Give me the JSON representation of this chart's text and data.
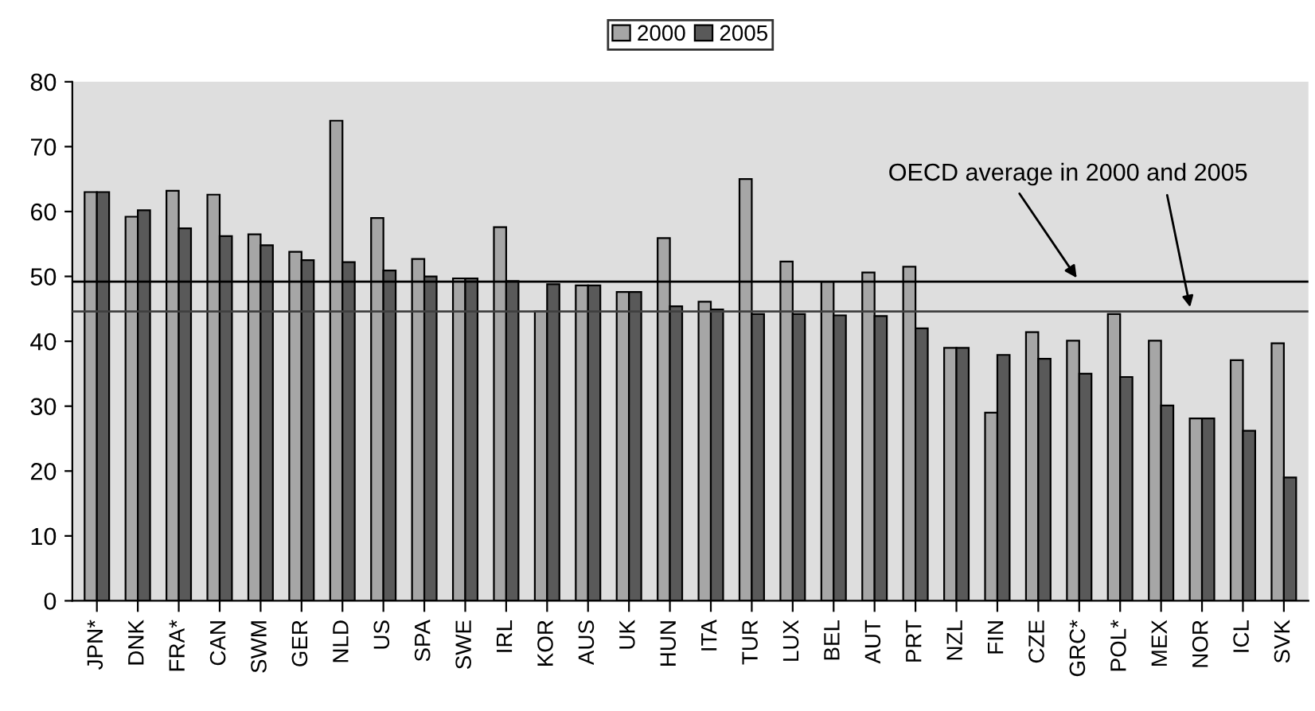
{
  "chart_data": {
    "type": "bar",
    "categories": [
      "JPN*",
      "DNK",
      "FRA*",
      "CAN",
      "SWM",
      "GER",
      "NLD",
      "US",
      "SPA",
      "SWE",
      "IRL",
      "KOR",
      "AUS",
      "UK",
      "HUN",
      "ITA",
      "TUR",
      "LUX",
      "BEL",
      "AUT",
      "PRT",
      "NZL",
      "FIN",
      "CZE",
      "GRC*",
      "POL*",
      "MEX",
      "NOR",
      "ICL",
      "SVK"
    ],
    "series": [
      {
        "name": "2000",
        "color": "#a6a6a6",
        "values": [
          63,
          59.2,
          63.2,
          62.6,
          56.5,
          53.8,
          74,
          59,
          52.7,
          49.7,
          57.6,
          44.6,
          48.6,
          47.6,
          55.9,
          46.1,
          65,
          52.3,
          49.2,
          50.6,
          51.5,
          39,
          29,
          41.4,
          40.1,
          44.2,
          40.1,
          28.1,
          37.1,
          39.7
        ]
      },
      {
        "name": "2005",
        "color": "#595959",
        "values": [
          63,
          60.2,
          57.4,
          56.2,
          54.8,
          52.5,
          52.2,
          50.9,
          50,
          49.7,
          49.3,
          48.8,
          48.6,
          47.6,
          45.4,
          44.9,
          44.2,
          44.2,
          44,
          43.9,
          42,
          39,
          37.9,
          37.3,
          35,
          34.5,
          30.1,
          28.1,
          26.2,
          19
        ]
      }
    ],
    "ylim": [
      0,
      80
    ],
    "yticks": [
      0,
      10,
      20,
      30,
      40,
      50,
      60,
      70,
      80
    ],
    "ref_lines": [
      {
        "axis": "y",
        "value": 49.2,
        "color": "#000000"
      },
      {
        "axis": "y",
        "value": 44.6,
        "color": "#404040"
      }
    ],
    "annotations": [
      {
        "text": "OECD average in 2000 and 2005",
        "x": "GRC*",
        "y": 49.2
      }
    ],
    "legend": "top",
    "grid": false
  }
}
